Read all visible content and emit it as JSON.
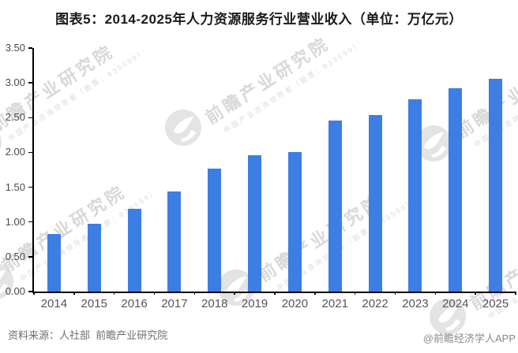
{
  "title": "图表5：2014-2025年人力资源服务行业营业收入（单位：万亿元）",
  "footer": {
    "source": "资料来源：人社部  前瞻产业研究院",
    "credit": "@前瞻经济学人APP"
  },
  "watermark": {
    "brand": "前瞻产业研究院",
    "tagline": "中国产业咨询领导者（股票：839599）"
  },
  "colors": {
    "bar": "#3C7EE3",
    "axis": "#000000",
    "y_tick_label": "#4A4A4A",
    "x_tick_label": "#555555",
    "title": "#1A1A1A",
    "footer_text": "#6E6E6E",
    "watermark_text": "#D8D8D8",
    "watermark_logo": "#E4E4E4",
    "background": "#FFFFFF"
  },
  "chart_data": {
    "type": "bar",
    "title": "图表5：2014-2025年人力资源服务行业营业收入（单位：万亿元）",
    "unit": "万亿元",
    "categories": [
      "2014",
      "2015",
      "2016",
      "2017",
      "2018",
      "2019",
      "2020",
      "2021",
      "2022",
      "2023",
      "2024",
      "2025"
    ],
    "values": [
      0.83,
      0.97,
      1.19,
      1.44,
      1.77,
      1.96,
      2.01,
      2.46,
      2.54,
      2.76,
      2.92,
      3.06
    ],
    "xlabel": "",
    "ylabel": "",
    "ylim": [
      0,
      3.5
    ],
    "ytick_step": 0.5,
    "ytick_labels": [
      "0.00",
      "0.50",
      "1.00",
      "1.50",
      "2.00",
      "2.50",
      "3.00",
      "3.50"
    ],
    "grid": false,
    "legend": "none",
    "bar_color": "#3C7EE3"
  }
}
